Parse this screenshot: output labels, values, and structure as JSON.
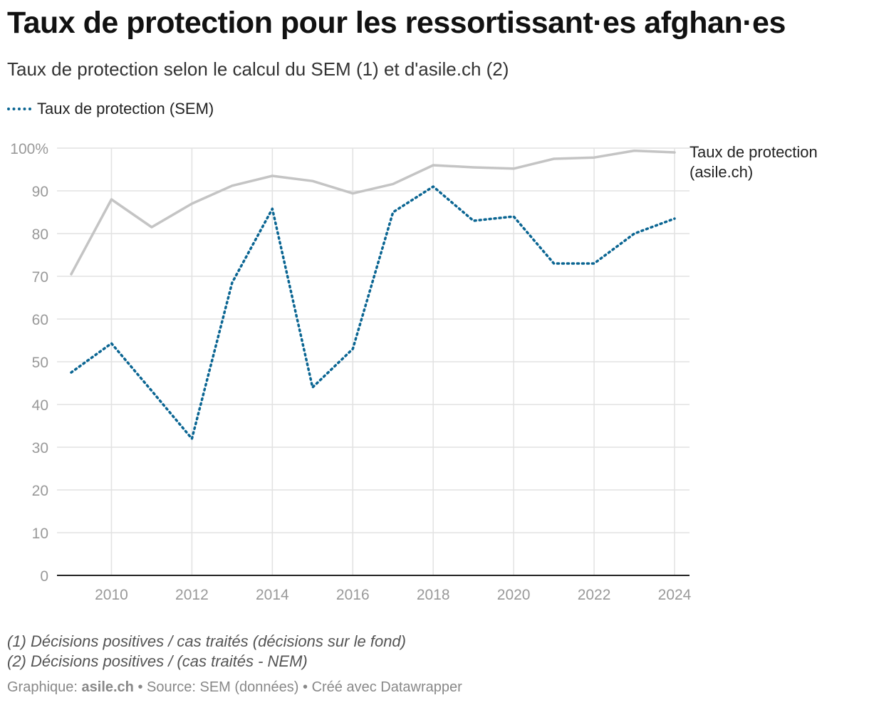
{
  "title": "Taux de protection pour les ressortissant·es afghan·es",
  "subtitle": "Taux de protection selon le calcul du SEM (1) et d'asile.ch (2)",
  "legend": {
    "sem_label": "Taux de protection (SEM)"
  },
  "colors": {
    "sem": "#0a6592",
    "asile": "#c4c4c4",
    "grid": "#e2e2e2",
    "tick": "#999999",
    "axis": "#222222"
  },
  "chart_data": {
    "type": "line",
    "title": "Taux de protection pour les ressortissant·es afghan·es",
    "xlabel": "",
    "ylabel": "",
    "x": [
      2009,
      2010,
      2011,
      2012,
      2013,
      2014,
      2015,
      2016,
      2017,
      2018,
      2019,
      2020,
      2021,
      2022,
      2023,
      2024
    ],
    "xlim": [
      2009,
      2024
    ],
    "ylim": [
      0,
      100
    ],
    "x_ticks": [
      "2010",
      "2012",
      "2014",
      "2016",
      "2018",
      "2020",
      "2022",
      "2024"
    ],
    "y_ticks": [
      "0",
      "10",
      "20",
      "30",
      "40",
      "50",
      "60",
      "70",
      "80",
      "90",
      "100%"
    ],
    "series": [
      {
        "name": "Taux de protection (SEM)",
        "style": "dotted",
        "values": [
          47.5,
          54.3,
          43.2,
          32.0,
          68.5,
          85.8,
          44.0,
          53.0,
          85.0,
          91.0,
          83.0,
          84.0,
          73.0,
          73.0,
          80.0,
          83.5
        ]
      },
      {
        "name": "Taux de protection (asile.ch)",
        "label_lines": [
          "Taux de protection",
          "(asile.ch)"
        ],
        "style": "solid",
        "values": [
          70.5,
          88.0,
          81.5,
          87.0,
          91.2,
          93.5,
          92.3,
          89.4,
          91.6,
          96.0,
          95.5,
          95.2,
          97.5,
          97.8,
          99.4,
          99.0
        ]
      }
    ]
  },
  "notes": {
    "note1": "(1) Décisions positives / cas traités (décisions sur le fond)",
    "note2": "(2) Décisions positives / (cas traités - NEM)"
  },
  "footer": {
    "prefix": "Graphique: ",
    "brand": "asile.ch",
    "rest": " • Source: SEM (données) • Créé avec Datawrapper"
  }
}
